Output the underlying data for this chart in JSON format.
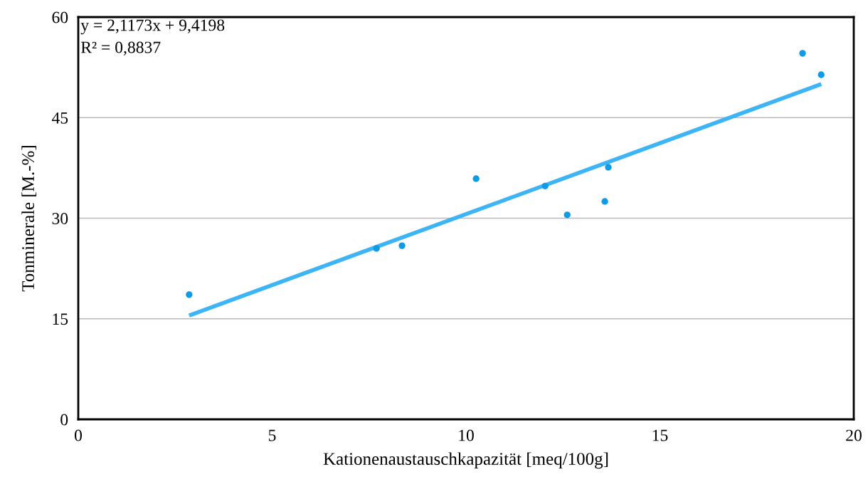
{
  "chart_data": {
    "type": "scatter",
    "xlabel": "Kationenaustauschkapazität [meq/100g]",
    "ylabel": "Tonminerale [M.-%]",
    "series": [
      {
        "color": "#0f9be8",
        "marker": "circle",
        "x": [
          2.86,
          7.69,
          8.35,
          10.26,
          12.04,
          12.61,
          13.58,
          13.67,
          18.68,
          19.16
        ],
        "values": [
          18.6,
          25.5,
          25.9,
          35.9,
          34.8,
          30.5,
          32.5,
          37.6,
          54.6,
          51.4
        ]
      },
      {
        "type": "line",
        "color": "#3cb4f5",
        "x": [
          2.86,
          19.16
        ],
        "values": [
          15.5,
          50.0
        ]
      }
    ],
    "annotations": [
      "y = 2,1173x + 9,4198",
      "R² = 0,8837"
    ],
    "xlim": [
      0,
      20
    ],
    "xticks": [
      0,
      5,
      10,
      15,
      20
    ],
    "ylim": [
      0,
      60
    ],
    "yticks": [
      0,
      15,
      30,
      45,
      60
    ],
    "grid": "y",
    "legend": false
  }
}
